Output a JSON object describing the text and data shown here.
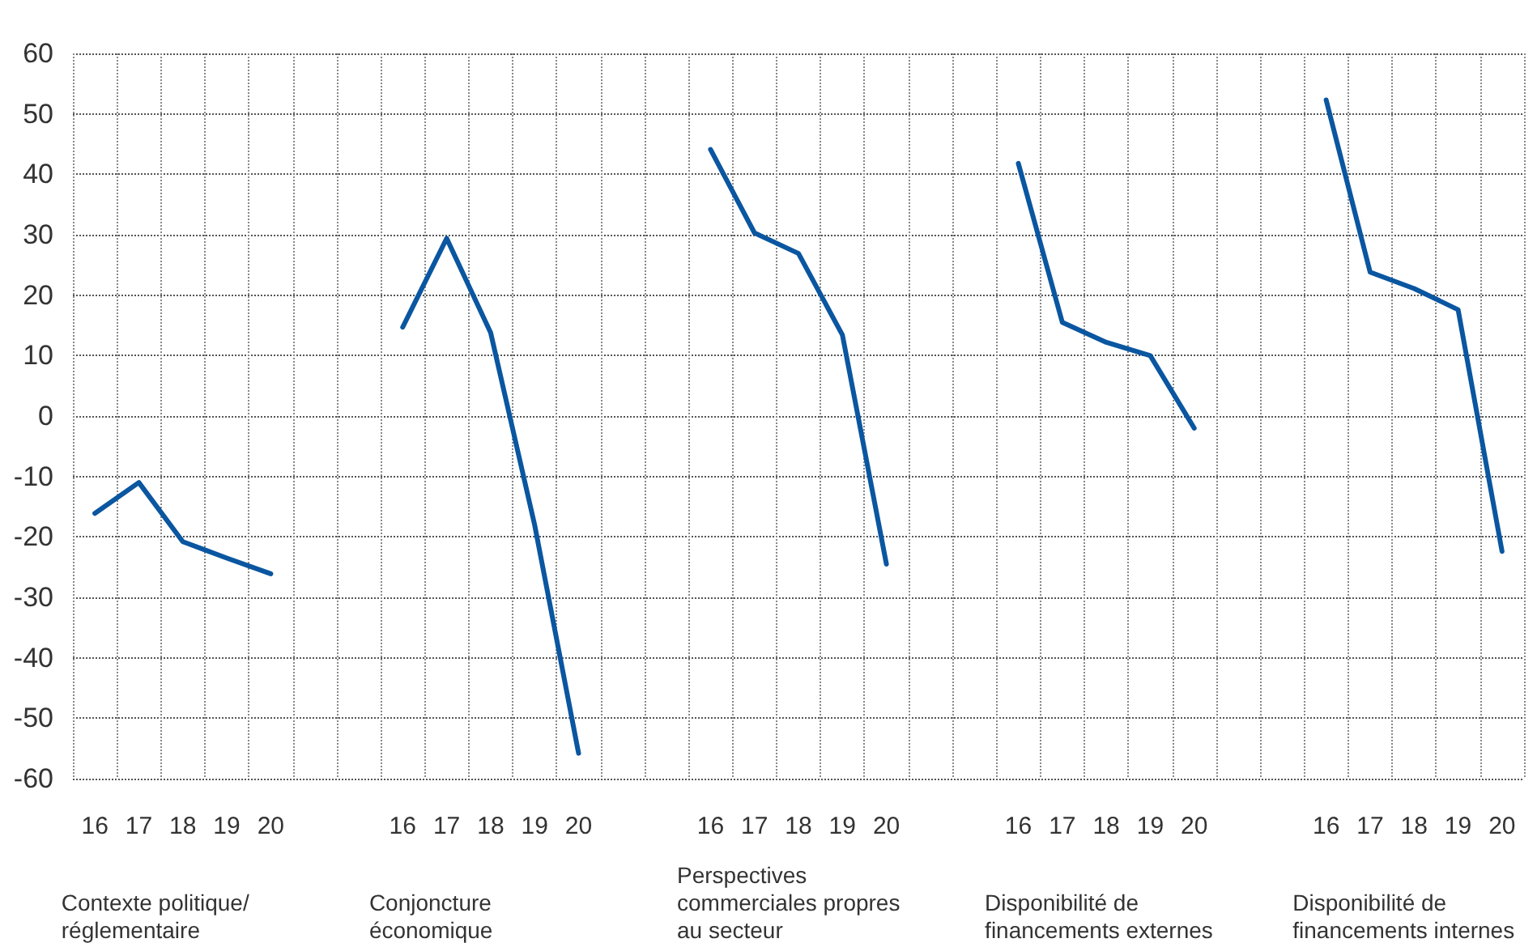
{
  "chart_data": {
    "type": "line",
    "categories": [
      "16",
      "17",
      "18",
      "19",
      "20",
      null,
      null,
      "16",
      "17",
      "18",
      "19",
      "20",
      null,
      null,
      "16",
      "17",
      "18",
      "19",
      "20",
      null,
      null,
      "16",
      "17",
      "18",
      "19",
      "20",
      null,
      null,
      "16",
      "17",
      "18",
      "19",
      "20"
    ],
    "series": [
      {
        "color": "#0a56a0",
        "values": [
          -16.1,
          -11,
          -20.8,
          -23.5,
          -26.1,
          null,
          null,
          14.7,
          29.4,
          13.8,
          -18,
          -55.8,
          null,
          null,
          44.1,
          30.3,
          26.9,
          13.4,
          -24.5,
          null,
          null,
          41.8,
          15.5,
          12.2,
          10,
          -2,
          null,
          null,
          52.3,
          23.8,
          21.1,
          17.6,
          -22.4
        ]
      }
    ],
    "ylim": [
      -60,
      60
    ],
    "yticks": [
      -60,
      -50,
      -40,
      -30,
      -20,
      -10,
      0,
      10,
      20,
      30,
      40,
      50,
      60
    ],
    "grid": true,
    "marker": "none",
    "line_style": "solid",
    "annotations": [
      "Contexte politique/ réglementaire",
      "Conjoncture économique",
      "Perspectives commerciales propres au secteur",
      "Disponibilité de financements externes",
      "Disponibilité de financements internes"
    ]
  }
}
